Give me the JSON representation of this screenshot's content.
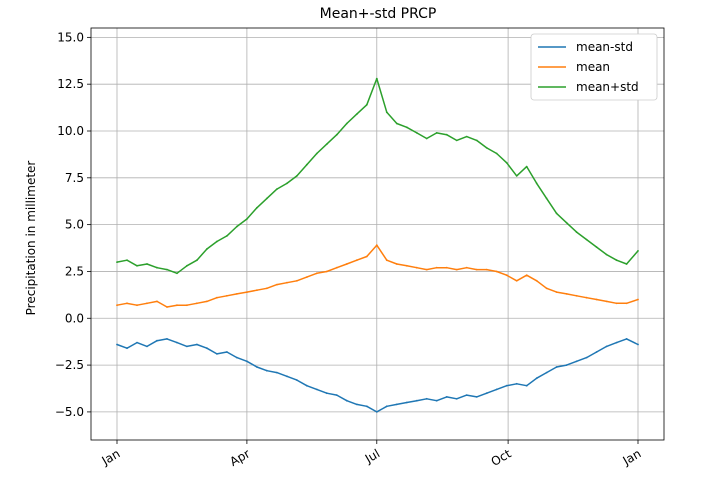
{
  "chart_data": {
    "type": "line",
    "title": "Mean+-std   PRCP",
    "xlabel": "",
    "ylabel": "Precipitation in millimeter",
    "x_ticks": [
      "Jan",
      "Apr",
      "Jul",
      "Oct",
      "Jan"
    ],
    "y_ticks": [
      "−5.0",
      "−2.5",
      "0.0",
      "2.5",
      "5.0",
      "7.5",
      "10.0",
      "12.5",
      "15.0"
    ],
    "ylim": [
      -6.5,
      15.5
    ],
    "grid": true,
    "legend_position": "top-right",
    "x": [
      "2020-01-01",
      "2020-01-08",
      "2020-01-15",
      "2020-01-22",
      "2020-01-29",
      "2020-02-05",
      "2020-02-12",
      "2020-02-19",
      "2020-02-26",
      "2020-03-04",
      "2020-03-11",
      "2020-03-18",
      "2020-03-25",
      "2020-04-01",
      "2020-04-08",
      "2020-04-15",
      "2020-04-22",
      "2020-04-29",
      "2020-05-06",
      "2020-05-13",
      "2020-05-20",
      "2020-05-27",
      "2020-06-03",
      "2020-06-10",
      "2020-06-17",
      "2020-06-24",
      "2020-07-01",
      "2020-07-08",
      "2020-07-15",
      "2020-07-22",
      "2020-07-29",
      "2020-08-05",
      "2020-08-12",
      "2020-08-19",
      "2020-08-26",
      "2020-09-02",
      "2020-09-09",
      "2020-09-16",
      "2020-09-23",
      "2020-09-30",
      "2020-10-07",
      "2020-10-14",
      "2020-10-21",
      "2020-10-28",
      "2020-11-04",
      "2020-11-11",
      "2020-11-18",
      "2020-11-25",
      "2020-12-02",
      "2020-12-09",
      "2020-12-16",
      "2020-12-23",
      "2020-12-31"
    ],
    "series": [
      {
        "name": "mean-std",
        "color": "#1f77b4",
        "values": [
          -1.4,
          -1.6,
          -1.3,
          -1.5,
          -1.2,
          -1.1,
          -1.3,
          -1.5,
          -1.4,
          -1.6,
          -1.9,
          -1.8,
          -2.1,
          -2.3,
          -2.6,
          -2.8,
          -2.9,
          -3.1,
          -3.3,
          -3.6,
          -3.8,
          -4.0,
          -4.1,
          -4.4,
          -4.6,
          -4.7,
          -5.0,
          -4.7,
          -4.6,
          -4.5,
          -4.4,
          -4.3,
          -4.4,
          -4.2,
          -4.3,
          -4.1,
          -4.2,
          -4.0,
          -3.8,
          -3.6,
          -3.5,
          -3.6,
          -3.2,
          -2.9,
          -2.6,
          -2.5,
          -2.3,
          -2.1,
          -1.8,
          -1.5,
          -1.3,
          -1.1,
          -1.4
        ]
      },
      {
        "name": "mean",
        "color": "#ff7f0e",
        "values": [
          0.7,
          0.8,
          0.7,
          0.8,
          0.9,
          0.6,
          0.7,
          0.7,
          0.8,
          0.9,
          1.1,
          1.2,
          1.3,
          1.4,
          1.5,
          1.6,
          1.8,
          1.9,
          2.0,
          2.2,
          2.4,
          2.5,
          2.7,
          2.9,
          3.1,
          3.3,
          3.9,
          3.1,
          2.9,
          2.8,
          2.7,
          2.6,
          2.7,
          2.7,
          2.6,
          2.7,
          2.6,
          2.6,
          2.5,
          2.3,
          2.0,
          2.3,
          2.0,
          1.6,
          1.4,
          1.3,
          1.2,
          1.1,
          1.0,
          0.9,
          0.8,
          0.8,
          1.0
        ]
      },
      {
        "name": "mean+std",
        "color": "#2ca02c",
        "values": [
          3.0,
          3.1,
          2.8,
          2.9,
          2.7,
          2.6,
          2.4,
          2.8,
          3.1,
          3.7,
          4.1,
          4.4,
          4.9,
          5.3,
          5.9,
          6.4,
          6.9,
          7.2,
          7.6,
          8.2,
          8.8,
          9.3,
          9.8,
          10.4,
          10.9,
          11.4,
          12.8,
          11.0,
          10.4,
          10.2,
          9.9,
          9.6,
          9.9,
          9.8,
          9.5,
          9.7,
          9.5,
          9.1,
          8.8,
          8.3,
          7.6,
          8.1,
          7.2,
          6.4,
          5.6,
          5.1,
          4.6,
          4.2,
          3.8,
          3.4,
          3.1,
          2.9,
          3.6
        ]
      }
    ]
  }
}
